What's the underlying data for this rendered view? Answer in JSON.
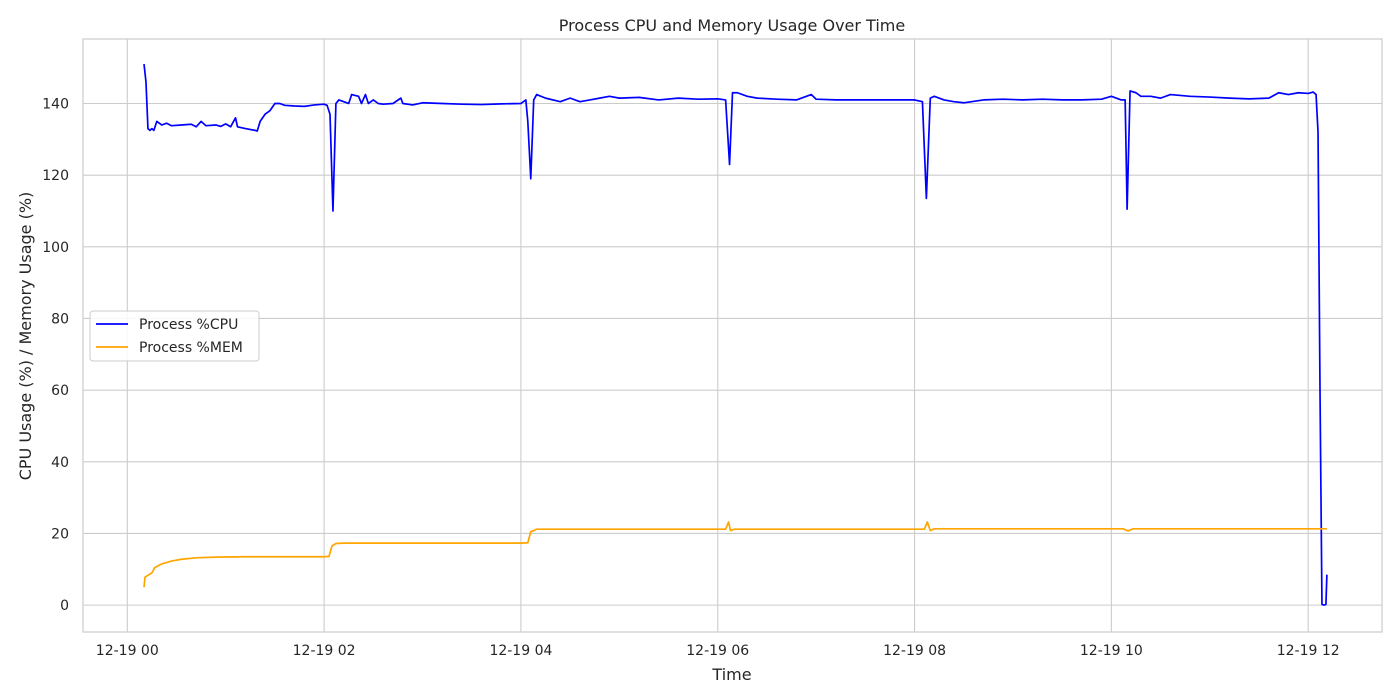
{
  "chart_data": {
    "type": "line",
    "title": "Process CPU and Memory Usage Over Time",
    "xlabel": "Time",
    "ylabel": "CPU Usage (%) / Memory Usage (%)",
    "x_unit": "hours since 12-19 00",
    "xlim": [
      -0.45,
      12.75
    ],
    "ylim": [
      -7.5,
      158
    ],
    "x_ticks": [
      {
        "value": 0,
        "label": "12-19 00"
      },
      {
        "value": 2,
        "label": "12-19 02"
      },
      {
        "value": 4,
        "label": "12-19 04"
      },
      {
        "value": 6,
        "label": "12-19 06"
      },
      {
        "value": 8,
        "label": "12-19 08"
      },
      {
        "value": 10,
        "label": "12-19 10"
      },
      {
        "value": 12,
        "label": "12-19 12"
      }
    ],
    "y_ticks": [
      0,
      20,
      40,
      60,
      80,
      100,
      120,
      140
    ],
    "grid": true,
    "legend_position": "center-left",
    "series": [
      {
        "name": "Process %CPU",
        "color": "#0000ff",
        "points": [
          [
            0.17,
            151
          ],
          [
            0.19,
            146
          ],
          [
            0.21,
            133
          ],
          [
            0.23,
            132.5
          ],
          [
            0.25,
            133
          ],
          [
            0.27,
            132.5
          ],
          [
            0.3,
            135
          ],
          [
            0.35,
            134
          ],
          [
            0.4,
            134.5
          ],
          [
            0.45,
            133.8
          ],
          [
            0.55,
            134
          ],
          [
            0.65,
            134.2
          ],
          [
            0.7,
            133.5
          ],
          [
            0.75,
            135
          ],
          [
            0.8,
            133.8
          ],
          [
            0.9,
            134
          ],
          [
            0.95,
            133.6
          ],
          [
            1.0,
            134.3
          ],
          [
            1.05,
            133.5
          ],
          [
            1.1,
            136
          ],
          [
            1.12,
            133.5
          ],
          [
            1.2,
            133
          ],
          [
            1.3,
            132.5
          ],
          [
            1.32,
            132.3
          ],
          [
            1.35,
            135
          ],
          [
            1.4,
            137
          ],
          [
            1.45,
            138
          ],
          [
            1.5,
            140
          ],
          [
            1.55,
            140
          ],
          [
            1.6,
            139.5
          ],
          [
            1.7,
            139.3
          ],
          [
            1.8,
            139.2
          ],
          [
            1.8,
            139.2
          ],
          [
            1.9,
            139.6
          ],
          [
            2.0,
            139.8
          ],
          [
            2.03,
            139.5
          ],
          [
            2.06,
            137
          ],
          [
            2.09,
            110
          ],
          [
            2.12,
            140
          ],
          [
            2.15,
            141
          ],
          [
            2.2,
            140.5
          ],
          [
            2.25,
            140
          ],
          [
            2.28,
            142.5
          ],
          [
            2.35,
            142
          ],
          [
            2.38,
            140
          ],
          [
            2.42,
            142.5
          ],
          [
            2.45,
            140
          ],
          [
            2.5,
            141
          ],
          [
            2.55,
            140
          ],
          [
            2.6,
            139.8
          ],
          [
            2.7,
            140
          ],
          [
            2.78,
            141.5
          ],
          [
            2.8,
            140
          ],
          [
            2.9,
            139.6
          ],
          [
            3.0,
            140.2
          ],
          [
            3.2,
            140
          ],
          [
            3.4,
            139.8
          ],
          [
            3.6,
            139.7
          ],
          [
            3.8,
            139.9
          ],
          [
            4.0,
            140
          ],
          [
            4.05,
            141
          ],
          [
            4.07,
            135
          ],
          [
            4.1,
            119
          ],
          [
            4.13,
            141
          ],
          [
            4.16,
            142.5
          ],
          [
            4.25,
            141.5
          ],
          [
            4.4,
            140.5
          ],
          [
            4.5,
            141.5
          ],
          [
            4.6,
            140.5
          ],
          [
            4.7,
            141
          ],
          [
            4.8,
            141.5
          ],
          [
            4.9,
            142
          ],
          [
            5.0,
            141.5
          ],
          [
            5.2,
            141.7
          ],
          [
            5.4,
            141
          ],
          [
            5.6,
            141.5
          ],
          [
            5.8,
            141.2
          ],
          [
            6.0,
            141.3
          ],
          [
            6.08,
            141
          ],
          [
            6.12,
            123
          ],
          [
            6.15,
            143
          ],
          [
            6.2,
            143
          ],
          [
            6.3,
            142
          ],
          [
            6.4,
            141.5
          ],
          [
            6.6,
            141.2
          ],
          [
            6.8,
            141
          ],
          [
            6.95,
            142.5
          ],
          [
            7.0,
            141.2
          ],
          [
            7.2,
            141
          ],
          [
            7.4,
            141
          ],
          [
            7.6,
            141
          ],
          [
            7.8,
            141
          ],
          [
            8.0,
            141
          ],
          [
            8.08,
            140.5
          ],
          [
            8.12,
            113.5
          ],
          [
            8.16,
            141.5
          ],
          [
            8.2,
            142
          ],
          [
            8.3,
            141
          ],
          [
            8.4,
            140.5
          ],
          [
            8.5,
            140.2
          ],
          [
            8.7,
            141
          ],
          [
            8.9,
            141.2
          ],
          [
            9.1,
            141
          ],
          [
            9.3,
            141.2
          ],
          [
            9.5,
            141
          ],
          [
            9.7,
            141
          ],
          [
            9.9,
            141.2
          ],
          [
            10.0,
            142
          ],
          [
            10.1,
            141
          ],
          [
            10.14,
            141
          ],
          [
            10.16,
            110.5
          ],
          [
            10.19,
            143.5
          ],
          [
            10.25,
            143
          ],
          [
            10.3,
            142
          ],
          [
            10.4,
            142
          ],
          [
            10.5,
            141.5
          ],
          [
            10.6,
            142.5
          ],
          [
            10.8,
            142
          ],
          [
            11.0,
            141.8
          ],
          [
            11.2,
            141.5
          ],
          [
            11.4,
            141.3
          ],
          [
            11.6,
            141.5
          ],
          [
            11.7,
            143
          ],
          [
            11.8,
            142.5
          ],
          [
            11.9,
            143
          ],
          [
            12.0,
            142.8
          ],
          [
            12.05,
            143.2
          ],
          [
            12.08,
            142.5
          ],
          [
            12.1,
            132
          ],
          [
            12.12,
            60
          ],
          [
            12.14,
            0.2
          ],
          [
            12.16,
            0
          ],
          [
            12.18,
            0.2
          ],
          [
            12.19,
            8.5
          ]
        ]
      },
      {
        "name": "Process %MEM",
        "color": "#ffa500",
        "points": [
          [
            0.17,
            5
          ],
          [
            0.18,
            7.8
          ],
          [
            0.22,
            8.5
          ],
          [
            0.25,
            9
          ],
          [
            0.28,
            10.5
          ],
          [
            0.35,
            11.5
          ],
          [
            0.45,
            12.3
          ],
          [
            0.55,
            12.8
          ],
          [
            0.7,
            13.2
          ],
          [
            0.9,
            13.4
          ],
          [
            1.2,
            13.5
          ],
          [
            1.6,
            13.5
          ],
          [
            2.0,
            13.5
          ],
          [
            2.05,
            13.6
          ],
          [
            2.08,
            16.5
          ],
          [
            2.12,
            17.2
          ],
          [
            2.2,
            17.3
          ],
          [
            2.6,
            17.3
          ],
          [
            3.0,
            17.3
          ],
          [
            3.5,
            17.3
          ],
          [
            4.0,
            17.3
          ],
          [
            4.07,
            17.4
          ],
          [
            4.1,
            20.5
          ],
          [
            4.13,
            20.8
          ],
          [
            4.16,
            21.2
          ],
          [
            4.5,
            21.2
          ],
          [
            5.0,
            21.2
          ],
          [
            5.5,
            21.2
          ],
          [
            6.0,
            21.2
          ],
          [
            6.08,
            21.2
          ],
          [
            6.11,
            23.2
          ],
          [
            6.13,
            20.8
          ],
          [
            6.17,
            21.2
          ],
          [
            6.6,
            21.2
          ],
          [
            7.0,
            21.2
          ],
          [
            7.5,
            21.2
          ],
          [
            8.0,
            21.2
          ],
          [
            8.1,
            21.2
          ],
          [
            8.13,
            23.2
          ],
          [
            8.16,
            20.8
          ],
          [
            8.2,
            21.3
          ],
          [
            8.6,
            21.3
          ],
          [
            9.0,
            21.3
          ],
          [
            9.5,
            21.3
          ],
          [
            10.0,
            21.3
          ],
          [
            10.12,
            21.3
          ],
          [
            10.17,
            20.7
          ],
          [
            10.22,
            21.3
          ],
          [
            10.6,
            21.3
          ],
          [
            11.0,
            21.3
          ],
          [
            11.5,
            21.3
          ],
          [
            12.0,
            21.3
          ],
          [
            12.1,
            21.3
          ],
          [
            12.19,
            21.3
          ]
        ]
      }
    ]
  }
}
